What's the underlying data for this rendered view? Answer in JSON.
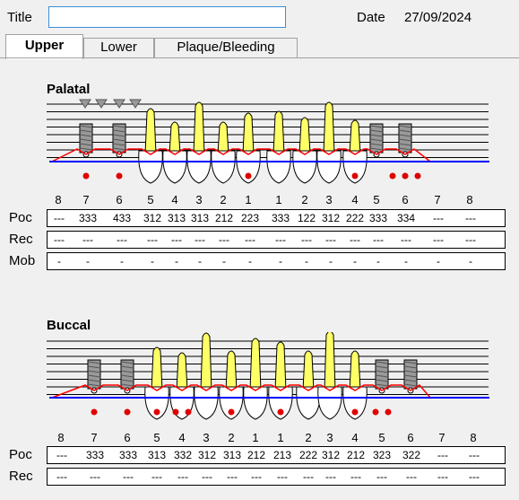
{
  "header": {
    "title_label": "Title",
    "title_value": "",
    "date_label": "Date",
    "date_value": "27/09/2024"
  },
  "tabs": [
    {
      "label": "Upper",
      "active": true
    },
    {
      "label": "Lower",
      "active": false
    },
    {
      "label": "Plaque/Bleeding",
      "active": false
    }
  ],
  "palatal": {
    "title": "Palatal",
    "tooth_numbers": [
      "8",
      "7",
      "6",
      "5",
      "4",
      "3",
      "2",
      "1",
      "1",
      "2",
      "3",
      "4",
      "5",
      "6",
      "7",
      "8"
    ],
    "rows": [
      {
        "label": "Poc",
        "values": [
          "---",
          "333",
          "433",
          "312",
          "313",
          "313",
          "212",
          "223",
          "333",
          "122",
          "312",
          "222",
          "333",
          "334",
          "---",
          "---"
        ]
      },
      {
        "label": "Rec",
        "values": [
          "---",
          "---",
          "---",
          "---",
          "---",
          "---",
          "---",
          "---",
          "---",
          "---",
          "---",
          "---",
          "---",
          "---",
          "---",
          "---"
        ]
      },
      {
        "label": "Mob",
        "values": [
          "-",
          "-",
          "-",
          "-",
          "-",
          "-",
          "-",
          "-",
          "-",
          "-",
          "-",
          "-",
          "-",
          "-",
          "-",
          "-"
        ]
      }
    ],
    "triangle_markers_at": [
      1,
      1,
      2,
      2
    ],
    "implants_at": [
      1,
      2,
      12,
      13
    ],
    "bleeding_dots_at": [
      1,
      2,
      7,
      11,
      13,
      13,
      13
    ]
  },
  "buccal": {
    "title": "Buccal",
    "tooth_numbers": [
      "8",
      "7",
      "6",
      "5",
      "4",
      "3",
      "2",
      "1",
      "1",
      "2",
      "3",
      "4",
      "5",
      "6",
      "7",
      "8"
    ],
    "rows": [
      {
        "label": "Poc",
        "values": [
          "---",
          "333",
          "333",
          "313",
          "332",
          "312",
          "313",
          "212",
          "213",
          "222",
          "312",
          "212",
          "323",
          "322",
          "---",
          "---"
        ]
      },
      {
        "label": "Rec",
        "values": [
          "---",
          "---",
          "---",
          "---",
          "---",
          "---",
          "---",
          "---",
          "---",
          "---",
          "---",
          "---",
          "---",
          "---",
          "---",
          "---"
        ]
      }
    ],
    "implants_at": [
      1,
      2,
      12,
      13
    ],
    "bleeding_dots_at": [
      1,
      2,
      3,
      4,
      4,
      6,
      8,
      11,
      12,
      12
    ]
  },
  "colors": {
    "gum_line": "#ff0000",
    "bone_line": "#0000ff",
    "bleeding_dot": "#e00000",
    "crown_fill": "#ffff66",
    "input_border": "#3b8fd6"
  }
}
